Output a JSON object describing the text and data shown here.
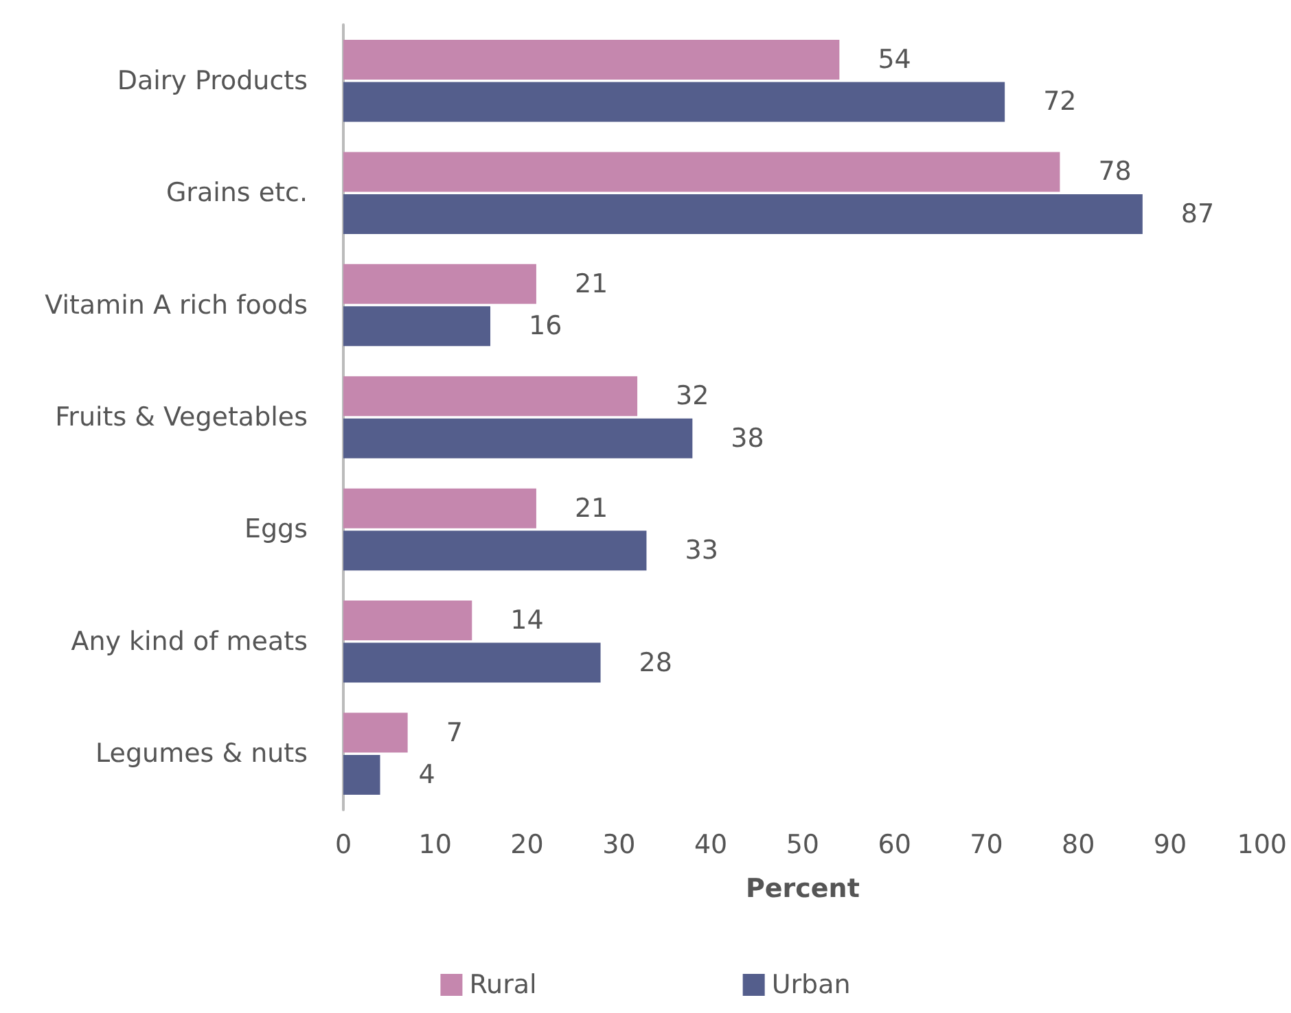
{
  "chart_data": {
    "type": "bar",
    "orientation": "horizontal",
    "xlabel": "Percent",
    "categories": [
      "Dairy Products",
      "Grains etc.",
      "Vitamin A rich foods",
      "Fruits & Vegetables",
      "Eggs",
      "Any kind of meats",
      "Legumes & nuts"
    ],
    "series": [
      {
        "name": "Rural",
        "color": "#c587ae",
        "values": [
          54,
          78,
          21,
          32,
          21,
          14,
          7
        ]
      },
      {
        "name": "Urban",
        "color": "#545e8c",
        "values": [
          72,
          87,
          16,
          38,
          33,
          28,
          4
        ]
      }
    ],
    "xlim": [
      0,
      100
    ],
    "xticks": [
      0,
      10,
      20,
      30,
      40,
      50,
      60,
      70,
      80,
      90,
      100
    ],
    "data_labels": true,
    "grid": false,
    "legend": "bottom"
  }
}
